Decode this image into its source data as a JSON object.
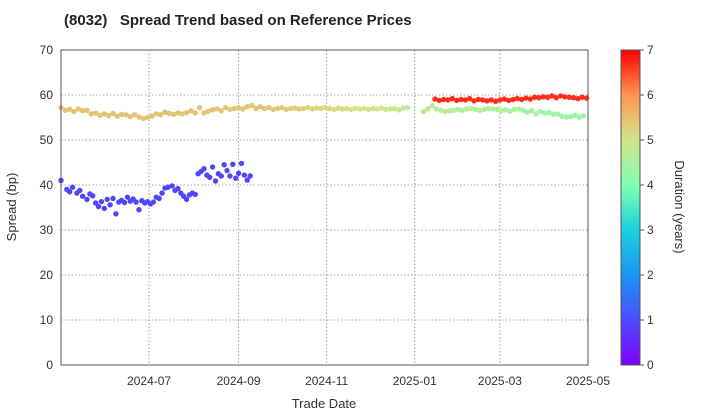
{
  "chart_data": {
    "type": "scatter",
    "title": "(8032)   Spread Trend based on Reference Prices",
    "xlabel": "Trade Date",
    "ylabel": "Spread (bp)",
    "xlim": [
      "2024-05-01",
      "2025-05-01"
    ],
    "ylim": [
      0,
      70
    ],
    "x_ticks": [
      "2024-07",
      "2024-09",
      "2024-11",
      "2025-01",
      "2025-03",
      "2025-05"
    ],
    "y_ticks": [
      0,
      10,
      20,
      30,
      40,
      50,
      60,
      70
    ],
    "grid": true,
    "colorbar": {
      "label": "Duration (years)",
      "range": [
        0,
        7
      ],
      "ticks": [
        0,
        1,
        2,
        3,
        4,
        5,
        6,
        7
      ],
      "colormap": "rainbow"
    },
    "series": [
      {
        "points": [
          [
            "2024-05-01",
            41.0,
            0.9
          ],
          [
            "2024-05-05",
            39.0,
            0.9
          ],
          [
            "2024-05-07",
            38.5,
            0.9
          ],
          [
            "2024-05-09",
            39.5,
            0.9
          ],
          [
            "2024-05-12",
            38.2,
            0.9
          ],
          [
            "2024-05-14",
            38.8,
            0.9
          ],
          [
            "2024-05-16",
            37.5,
            0.9
          ],
          [
            "2024-05-19",
            36.8,
            0.9
          ],
          [
            "2024-05-21",
            38.0,
            0.9
          ],
          [
            "2024-05-23",
            37.6,
            0.9
          ],
          [
            "2024-05-25",
            36.0,
            0.9
          ],
          [
            "2024-05-27",
            35.2,
            0.9
          ],
          [
            "2024-05-29",
            36.3,
            0.9
          ],
          [
            "2024-05-31",
            34.8,
            0.9
          ],
          [
            "2024-06-02",
            36.8,
            0.9
          ],
          [
            "2024-06-04",
            35.6,
            0.9
          ],
          [
            "2024-06-06",
            37.0,
            0.9
          ],
          [
            "2024-06-08",
            33.6,
            0.9
          ],
          [
            "2024-06-10",
            36.2,
            0.9
          ],
          [
            "2024-06-12",
            36.6,
            0.9
          ],
          [
            "2024-06-14",
            36.1,
            0.9
          ],
          [
            "2024-06-16",
            37.3,
            0.9
          ],
          [
            "2024-06-18",
            36.4,
            0.9
          ],
          [
            "2024-06-20",
            36.9,
            0.9
          ],
          [
            "2024-06-22",
            36.2,
            0.9
          ],
          [
            "2024-06-24",
            34.5,
            0.9
          ],
          [
            "2024-06-26",
            36.5,
            0.9
          ],
          [
            "2024-06-28",
            36.0,
            0.9
          ],
          [
            "2024-06-30",
            36.3,
            0.9
          ],
          [
            "2024-07-02",
            35.8,
            0.9
          ],
          [
            "2024-07-04",
            36.2,
            0.9
          ],
          [
            "2024-07-06",
            37.3,
            0.9
          ],
          [
            "2024-07-08",
            37.0,
            0.9
          ],
          [
            "2024-07-10",
            38.2,
            0.9
          ],
          [
            "2024-07-12",
            39.3,
            0.9
          ],
          [
            "2024-07-14",
            39.5,
            0.9
          ],
          [
            "2024-07-17",
            39.8,
            0.9
          ],
          [
            "2024-07-19",
            38.8,
            0.9
          ],
          [
            "2024-07-21",
            39.2,
            0.9
          ],
          [
            "2024-07-23",
            38.2,
            0.9
          ],
          [
            "2024-07-25",
            37.5,
            0.9
          ],
          [
            "2024-07-27",
            36.8,
            0.9
          ],
          [
            "2024-07-29",
            37.8,
            0.9
          ],
          [
            "2024-07-31",
            38.2,
            0.9
          ],
          [
            "2024-08-02",
            37.9,
            0.9
          ],
          [
            "2024-08-04",
            42.5,
            0.9
          ],
          [
            "2024-08-06",
            43.0,
            0.9
          ],
          [
            "2024-08-08",
            43.6,
            0.9
          ],
          [
            "2024-08-10",
            42.2,
            0.9
          ],
          [
            "2024-08-12",
            41.7,
            0.9
          ],
          [
            "2024-08-14",
            44.0,
            0.9
          ],
          [
            "2024-08-16",
            40.9,
            0.9
          ],
          [
            "2024-08-18",
            42.5,
            0.9
          ],
          [
            "2024-08-20",
            42.0,
            0.9
          ],
          [
            "2024-08-22",
            44.5,
            0.9
          ],
          [
            "2024-08-24",
            43.2,
            0.9
          ],
          [
            "2024-08-26",
            42.0,
            0.9
          ],
          [
            "2024-08-28",
            44.6,
            0.9
          ],
          [
            "2024-08-30",
            41.5,
            0.9
          ],
          [
            "2024-09-01",
            42.6,
            0.9
          ],
          [
            "2024-09-03",
            44.8,
            0.9
          ],
          [
            "2024-09-05",
            42.2,
            0.9
          ],
          [
            "2024-09-07",
            41.1,
            0.9
          ],
          [
            "2024-09-09",
            42.0,
            0.9
          ]
        ]
      },
      {
        "points": [
          [
            "2024-05-01",
            57.2,
            5.4
          ],
          [
            "2024-05-04",
            56.6,
            5.4
          ],
          [
            "2024-05-07",
            56.8,
            5.4
          ],
          [
            "2024-05-10",
            56.3,
            5.4
          ],
          [
            "2024-05-13",
            56.9,
            5.4
          ],
          [
            "2024-05-16",
            56.5,
            5.4
          ],
          [
            "2024-05-19",
            56.6,
            5.4
          ],
          [
            "2024-05-22",
            55.8,
            5.4
          ],
          [
            "2024-05-25",
            56.0,
            5.4
          ],
          [
            "2024-05-28",
            55.5,
            5.4
          ],
          [
            "2024-05-31",
            55.8,
            5.4
          ],
          [
            "2024-06-03",
            55.4,
            5.4
          ],
          [
            "2024-06-06",
            55.9,
            5.4
          ],
          [
            "2024-06-09",
            55.3,
            5.4
          ],
          [
            "2024-06-12",
            55.7,
            5.4
          ],
          [
            "2024-06-15",
            55.6,
            5.4
          ],
          [
            "2024-06-18",
            55.2,
            5.4
          ],
          [
            "2024-06-21",
            55.6,
            5.4
          ],
          [
            "2024-06-24",
            55.1,
            5.4
          ],
          [
            "2024-06-27",
            54.8,
            5.4
          ],
          [
            "2024-06-30",
            55.0,
            5.4
          ],
          [
            "2024-07-03",
            55.3,
            5.4
          ],
          [
            "2024-07-06",
            55.8,
            5.4
          ],
          [
            "2024-07-09",
            55.6,
            5.4
          ],
          [
            "2024-07-12",
            56.2,
            5.4
          ],
          [
            "2024-07-15",
            55.9,
            5.4
          ],
          [
            "2024-07-18",
            55.7,
            5.4
          ],
          [
            "2024-07-21",
            56.0,
            5.4
          ],
          [
            "2024-07-24",
            55.8,
            5.4
          ],
          [
            "2024-07-27",
            56.1,
            5.4
          ],
          [
            "2024-07-30",
            56.5,
            5.4
          ],
          [
            "2024-08-02",
            56.0,
            5.4
          ],
          [
            "2024-08-05",
            57.2,
            5.4
          ],
          [
            "2024-08-08",
            56.0,
            5.4
          ],
          [
            "2024-08-11",
            56.4,
            5.4
          ],
          [
            "2024-08-14",
            56.7,
            5.4
          ],
          [
            "2024-08-17",
            56.9,
            5.4
          ],
          [
            "2024-08-20",
            56.5,
            5.4
          ],
          [
            "2024-08-23",
            57.2,
            5.4
          ],
          [
            "2024-08-26",
            56.8,
            5.4
          ],
          [
            "2024-08-29",
            57.0,
            5.4
          ],
          [
            "2024-09-01",
            57.2,
            5.4
          ],
          [
            "2024-09-04",
            56.9,
            5.4
          ],
          [
            "2024-09-07",
            57.4,
            5.4
          ],
          [
            "2024-09-10",
            57.7,
            5.4
          ],
          [
            "2024-09-13",
            57.0,
            5.4
          ],
          [
            "2024-09-16",
            57.4,
            5.4
          ],
          [
            "2024-09-19",
            57.0,
            5.4
          ],
          [
            "2024-09-22",
            57.2,
            5.4
          ],
          [
            "2024-09-25",
            56.8,
            5.4
          ],
          [
            "2024-09-28",
            57.0,
            5.4
          ],
          [
            "2024-10-01",
            57.2,
            5.35
          ],
          [
            "2024-10-04",
            56.8,
            5.35
          ],
          [
            "2024-10-07",
            57.0,
            5.3
          ],
          [
            "2024-10-10",
            57.1,
            5.3
          ],
          [
            "2024-10-13",
            56.9,
            5.3
          ],
          [
            "2024-10-16",
            57.0,
            5.25
          ],
          [
            "2024-10-19",
            57.2,
            5.25
          ],
          [
            "2024-10-22",
            56.9,
            5.2
          ],
          [
            "2024-10-25",
            57.1,
            5.2
          ],
          [
            "2024-10-28",
            57.0,
            5.2
          ],
          [
            "2024-10-31",
            57.2,
            5.15
          ],
          [
            "2024-11-03",
            57.0,
            5.15
          ],
          [
            "2024-11-06",
            56.8,
            5.1
          ],
          [
            "2024-11-09",
            57.1,
            5.1
          ],
          [
            "2024-11-12",
            56.9,
            5.1
          ],
          [
            "2024-11-15",
            57.0,
            5.05
          ],
          [
            "2024-11-18",
            56.8,
            5.05
          ],
          [
            "2024-11-21",
            57.1,
            5.0
          ],
          [
            "2024-11-24",
            56.9,
            5.0
          ],
          [
            "2024-11-27",
            57.0,
            5.0
          ],
          [
            "2024-11-30",
            56.8,
            4.95
          ],
          [
            "2024-12-03",
            57.0,
            4.95
          ],
          [
            "2024-12-06",
            56.9,
            4.95
          ],
          [
            "2024-12-09",
            57.1,
            4.9
          ],
          [
            "2024-12-12",
            56.8,
            4.9
          ],
          [
            "2024-12-15",
            56.9,
            4.9
          ],
          [
            "2024-12-18",
            57.0,
            4.85
          ],
          [
            "2024-12-21",
            56.7,
            4.85
          ],
          [
            "2024-12-24",
            57.1,
            4.85
          ],
          [
            "2024-12-27",
            57.2,
            4.8
          ],
          [
            "2025-01-07",
            56.3,
            4.8
          ],
          [
            "2025-01-10",
            56.9,
            4.8
          ],
          [
            "2025-01-13",
            57.6,
            4.75
          ],
          [
            "2025-01-16",
            56.9,
            4.75
          ],
          [
            "2025-01-19",
            56.6,
            4.75
          ],
          [
            "2025-01-22",
            56.3,
            4.7
          ],
          [
            "2025-01-25",
            56.5,
            4.7
          ],
          [
            "2025-01-28",
            56.6,
            4.7
          ],
          [
            "2025-01-31",
            56.8,
            4.7
          ],
          [
            "2025-02-03",
            56.6,
            4.65
          ],
          [
            "2025-02-06",
            56.9,
            4.65
          ],
          [
            "2025-02-09",
            57.0,
            4.65
          ],
          [
            "2025-02-12",
            56.8,
            4.6
          ],
          [
            "2025-02-15",
            56.6,
            4.6
          ],
          [
            "2025-02-18",
            56.8,
            4.6
          ],
          [
            "2025-02-21",
            57.0,
            4.6
          ],
          [
            "2025-02-24",
            56.9,
            4.55
          ],
          [
            "2025-02-27",
            56.8,
            4.55
          ],
          [
            "2025-03-02",
            56.5,
            4.55
          ],
          [
            "2025-03-05",
            56.7,
            4.5
          ],
          [
            "2025-03-08",
            56.4,
            4.5
          ],
          [
            "2025-03-11",
            56.8,
            4.5
          ],
          [
            "2025-03-14",
            56.9,
            4.5
          ],
          [
            "2025-03-17",
            56.6,
            4.45
          ],
          [
            "2025-03-20",
            56.2,
            4.45
          ],
          [
            "2025-03-23",
            56.5,
            4.45
          ],
          [
            "2025-03-26",
            55.8,
            4.4
          ],
          [
            "2025-03-29",
            56.3,
            4.4
          ],
          [
            "2025-04-01",
            56.0,
            4.4
          ],
          [
            "2025-04-04",
            56.1,
            4.4
          ],
          [
            "2025-04-07",
            55.7,
            4.35
          ],
          [
            "2025-04-10",
            55.8,
            4.35
          ],
          [
            "2025-04-13",
            55.3,
            4.35
          ],
          [
            "2025-04-16",
            55.1,
            4.3
          ],
          [
            "2025-04-19",
            55.2,
            4.3
          ],
          [
            "2025-04-22",
            55.5,
            4.3
          ],
          [
            "2025-04-25",
            55.1,
            4.3
          ],
          [
            "2025-04-28",
            55.4,
            4.3
          ]
        ]
      },
      {
        "points": [
          [
            "2025-01-15",
            59.1,
            6.7
          ],
          [
            "2025-01-18",
            58.8,
            6.7
          ],
          [
            "2025-01-21",
            59.0,
            6.7
          ],
          [
            "2025-01-24",
            58.9,
            6.7
          ],
          [
            "2025-01-27",
            59.2,
            6.7
          ],
          [
            "2025-01-30",
            58.8,
            6.7
          ],
          [
            "2025-02-02",
            59.0,
            6.7
          ],
          [
            "2025-02-05",
            58.9,
            6.7
          ],
          [
            "2025-02-08",
            59.2,
            6.7
          ],
          [
            "2025-02-11",
            58.7,
            6.7
          ],
          [
            "2025-02-14",
            59.0,
            6.7
          ],
          [
            "2025-02-17",
            58.9,
            6.7
          ],
          [
            "2025-02-20",
            58.7,
            6.7
          ],
          [
            "2025-02-23",
            58.9,
            6.7
          ],
          [
            "2025-02-26",
            58.6,
            6.7
          ],
          [
            "2025-03-01",
            58.9,
            6.7
          ],
          [
            "2025-03-04",
            59.1,
            6.7
          ],
          [
            "2025-03-07",
            58.8,
            6.7
          ],
          [
            "2025-03-10",
            59.0,
            6.7
          ],
          [
            "2025-03-13",
            59.2,
            6.7
          ],
          [
            "2025-03-16",
            59.0,
            6.7
          ],
          [
            "2025-03-19",
            59.3,
            6.7
          ],
          [
            "2025-03-22",
            59.1,
            6.7
          ],
          [
            "2025-03-25",
            59.5,
            6.7
          ],
          [
            "2025-03-28",
            59.4,
            6.7
          ],
          [
            "2025-03-31",
            59.6,
            6.7
          ],
          [
            "2025-04-03",
            59.5,
            6.7
          ],
          [
            "2025-04-06",
            59.8,
            6.7
          ],
          [
            "2025-04-09",
            59.4,
            6.7
          ],
          [
            "2025-04-12",
            59.8,
            6.7
          ],
          [
            "2025-04-15",
            59.6,
            6.7
          ],
          [
            "2025-04-18",
            59.5,
            6.7
          ],
          [
            "2025-04-21",
            59.4,
            6.7
          ],
          [
            "2025-04-24",
            59.2,
            6.7
          ],
          [
            "2025-04-27",
            59.5,
            6.7
          ],
          [
            "2025-04-30",
            59.3,
            6.7
          ]
        ]
      }
    ]
  }
}
